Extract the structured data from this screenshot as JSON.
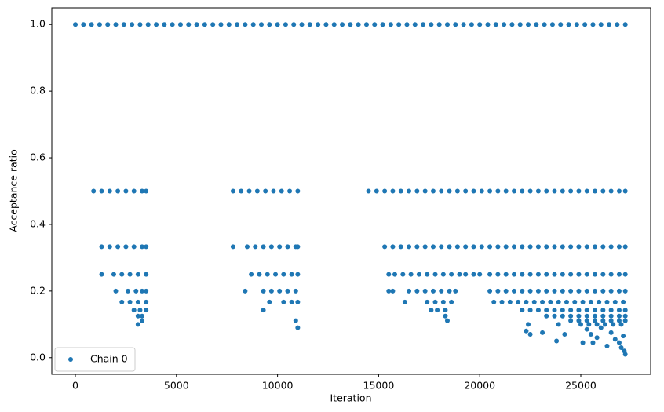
{
  "chart_data": {
    "type": "scatter",
    "x_label": "Iteration",
    "y_label": "Acceptance ratio",
    "xlim": [
      -1165,
      28455
    ],
    "ylim": [
      -0.05,
      1.05
    ],
    "xticks": [
      0,
      5000,
      10000,
      15000,
      20000,
      25000
    ],
    "yticks": [
      {
        "value": 0,
        "label": "0.0"
      },
      0.2,
      0.4,
      0.6,
      0.8,
      {
        "value": 1,
        "label": "1.0"
      }
    ],
    "grid": false,
    "legend": "lower left",
    "series": [
      {
        "name": "Chain 0",
        "color": "#1f77b4",
        "x": [
          0,
          400,
          800,
          1200,
          1600,
          2000,
          2400,
          2800,
          3200,
          3600,
          4000,
          4400,
          4800,
          5200,
          5600,
          6000,
          6400,
          6800,
          7200,
          7600,
          8000,
          8400,
          8800,
          9200,
          9600,
          10000,
          10400,
          10800,
          11200,
          11600,
          12000,
          12400,
          12800,
          13200,
          13600,
          14000,
          14400,
          14800,
          15200,
          15600,
          16000,
          16400,
          16800,
          17200,
          17600,
          18000,
          18400,
          18800,
          19200,
          19600,
          20000,
          20400,
          20800,
          21200,
          21600,
          22000,
          22400,
          22800,
          23200,
          23600,
          24000,
          24400,
          24800,
          25200,
          25600,
          26000,
          26400,
          26800,
          27200,
          900,
          1300,
          1700,
          2100,
          2500,
          2900,
          3300,
          3500,
          7800,
          8200,
          8600,
          9000,
          9400,
          9800,
          10200,
          10600,
          11000,
          14500,
          14900,
          15300,
          15700,
          16100,
          16500,
          16900,
          17300,
          17700,
          18100,
          18500,
          18900,
          19300,
          19700,
          20100,
          20500,
          20900,
          21300,
          21700,
          22100,
          22500,
          22900,
          23300,
          23700,
          24100,
          24500,
          24900,
          25300,
          25700,
          26100,
          26500,
          26900,
          27200,
          1300,
          1700,
          2100,
          2500,
          2900,
          3300,
          3500,
          7800,
          8500,
          8900,
          9300,
          9700,
          10100,
          10500,
          10900,
          11000,
          15300,
          15700,
          16100,
          16500,
          16900,
          17300,
          17700,
          18100,
          18500,
          18900,
          19300,
          19700,
          20100,
          20500,
          20900,
          21300,
          21700,
          22100,
          22500,
          22900,
          23300,
          23700,
          24100,
          24500,
          24900,
          25300,
          25700,
          26100,
          26500,
          26900,
          27200,
          1300,
          1900,
          2300,
          2700,
          3100,
          3500,
          8700,
          9100,
          9500,
          9900,
          10300,
          10700,
          11000,
          15500,
          15800,
          16200,
          16600,
          17000,
          17400,
          17800,
          18200,
          18600,
          19000,
          19300,
          19700,
          20000,
          20500,
          20900,
          21300,
          21700,
          22100,
          22500,
          22900,
          23300,
          23700,
          24100,
          24500,
          24900,
          25300,
          25700,
          26100,
          26500,
          26900,
          27200,
          2000,
          2600,
          3000,
          3300,
          3500,
          8400,
          9300,
          9700,
          10100,
          10500,
          10900,
          15500,
          15700,
          16500,
          16900,
          17300,
          17700,
          18100,
          18500,
          18800,
          20500,
          20900,
          21300,
          21700,
          22100,
          22500,
          22900,
          23300,
          23700,
          24100,
          24500,
          24900,
          25300,
          25700,
          26100,
          26500,
          26900,
          27200,
          2300,
          2700,
          3100,
          3500,
          9600,
          10300,
          10700,
          11000,
          16300,
          17400,
          17800,
          18200,
          18600,
          20700,
          21100,
          21500,
          21900,
          22300,
          22700,
          23100,
          23500,
          23900,
          24300,
          24700,
          25100,
          25500,
          25900,
          26300,
          26700,
          27100,
          2900,
          3200,
          3500,
          9300,
          17600,
          17900,
          18300,
          22100,
          22500,
          22900,
          23300,
          23700,
          24100,
          24500,
          24900,
          25300,
          25700,
          26100,
          26500,
          26900,
          27200,
          3100,
          3300,
          18300,
          23300,
          23700,
          24100,
          24500,
          24900,
          25300,
          25700,
          26100,
          26500,
          26900,
          27200,
          3300,
          10900,
          18400,
          24500,
          24900,
          25300,
          25700,
          26100,
          26500,
          26900,
          27200,
          3100,
          22400,
          23900,
          25000,
          25400,
          25800,
          26200,
          26600,
          27000,
          22300,
          22500,
          23100,
          23800,
          24200,
          25100,
          25300,
          25600,
          25800,
          26000,
          26300,
          26500,
          26700,
          26900,
          27000,
          27100,
          27150,
          27200,
          11000,
          25500
        ],
        "values": [
          1,
          1,
          1,
          1,
          1,
          1,
          1,
          1,
          1,
          1,
          1,
          1,
          1,
          1,
          1,
          1,
          1,
          1,
          1,
          1,
          1,
          1,
          1,
          1,
          1,
          1,
          1,
          1,
          1,
          1,
          1,
          1,
          1,
          1,
          1,
          1,
          1,
          1,
          1,
          1,
          1,
          1,
          1,
          1,
          1,
          1,
          1,
          1,
          1,
          1,
          1,
          1,
          1,
          1,
          1,
          1,
          1,
          1,
          1,
          1,
          1,
          1,
          1,
          1,
          1,
          1,
          1,
          1,
          1,
          0.5,
          0.5,
          0.5,
          0.5,
          0.5,
          0.5,
          0.5,
          0.5,
          0.5,
          0.5,
          0.5,
          0.5,
          0.5,
          0.5,
          0.5,
          0.5,
          0.5,
          0.5,
          0.5,
          0.5,
          0.5,
          0.5,
          0.5,
          0.5,
          0.5,
          0.5,
          0.5,
          0.5,
          0.5,
          0.5,
          0.5,
          0.5,
          0.5,
          0.5,
          0.5,
          0.5,
          0.5,
          0.5,
          0.5,
          0.5,
          0.5,
          0.5,
          0.5,
          0.5,
          0.5,
          0.5,
          0.5,
          0.5,
          0.5,
          0.5,
          0.333,
          0.333,
          0.333,
          0.333,
          0.333,
          0.333,
          0.333,
          0.333,
          0.333,
          0.333,
          0.333,
          0.333,
          0.333,
          0.333,
          0.333,
          0.333,
          0.333,
          0.333,
          0.333,
          0.333,
          0.333,
          0.333,
          0.333,
          0.333,
          0.333,
          0.333,
          0.333,
          0.333,
          0.333,
          0.333,
          0.333,
          0.333,
          0.333,
          0.333,
          0.333,
          0.333,
          0.333,
          0.333,
          0.333,
          0.333,
          0.333,
          0.333,
          0.333,
          0.333,
          0.333,
          0.333,
          0.333,
          0.25,
          0.25,
          0.25,
          0.25,
          0.25,
          0.25,
          0.25,
          0.25,
          0.25,
          0.25,
          0.25,
          0.25,
          0.25,
          0.25,
          0.25,
          0.25,
          0.25,
          0.25,
          0.25,
          0.25,
          0.25,
          0.25,
          0.25,
          0.25,
          0.25,
          0.25,
          0.25,
          0.25,
          0.25,
          0.25,
          0.25,
          0.25,
          0.25,
          0.25,
          0.25,
          0.25,
          0.25,
          0.25,
          0.25,
          0.25,
          0.25,
          0.25,
          0.25,
          0.25,
          0.2,
          0.2,
          0.2,
          0.2,
          0.2,
          0.2,
          0.2,
          0.2,
          0.2,
          0.2,
          0.2,
          0.2,
          0.2,
          0.2,
          0.2,
          0.2,
          0.2,
          0.2,
          0.2,
          0.2,
          0.2,
          0.2,
          0.2,
          0.2,
          0.2,
          0.2,
          0.2,
          0.2,
          0.2,
          0.2,
          0.2,
          0.2,
          0.2,
          0.2,
          0.2,
          0.2,
          0.2,
          0.2,
          0.167,
          0.167,
          0.167,
          0.167,
          0.167,
          0.167,
          0.167,
          0.167,
          0.167,
          0.167,
          0.167,
          0.167,
          0.167,
          0.167,
          0.167,
          0.167,
          0.167,
          0.167,
          0.167,
          0.167,
          0.167,
          0.167,
          0.167,
          0.167,
          0.167,
          0.167,
          0.167,
          0.167,
          0.167,
          0.167,
          0.143,
          0.143,
          0.143,
          0.143,
          0.143,
          0.143,
          0.143,
          0.143,
          0.143,
          0.143,
          0.143,
          0.143,
          0.143,
          0.143,
          0.143,
          0.143,
          0.143,
          0.143,
          0.143,
          0.143,
          0.143,
          0.125,
          0.125,
          0.125,
          0.125,
          0.125,
          0.125,
          0.125,
          0.125,
          0.125,
          0.125,
          0.125,
          0.125,
          0.125,
          0.125,
          0.111,
          0.111,
          0.111,
          0.111,
          0.111,
          0.111,
          0.111,
          0.111,
          0.111,
          0.111,
          0.111,
          0.1,
          0.1,
          0.1,
          0.1,
          0.1,
          0.1,
          0.1,
          0.1,
          0.1,
          0.08,
          0.07,
          0.075,
          0.05,
          0.07,
          0.045,
          0.085,
          0.045,
          0.06,
          0.09,
          0.035,
          0.075,
          0.055,
          0.045,
          0.03,
          0.065,
          0.02,
          0.01,
          0.09,
          0.07
        ]
      }
    ]
  }
}
